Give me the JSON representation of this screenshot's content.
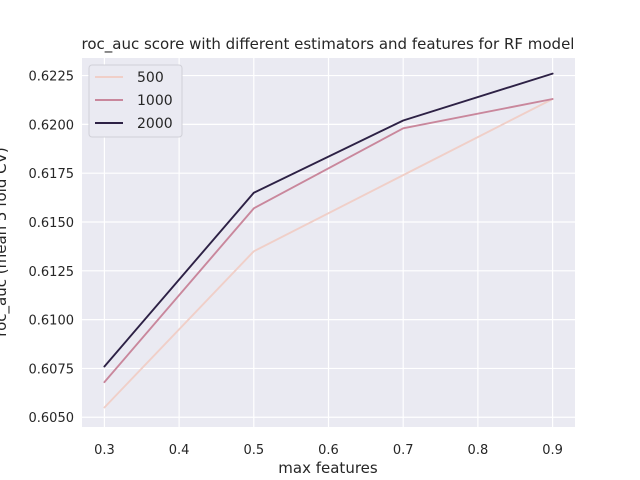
{
  "chart_data": {
    "type": "line",
    "title": "roc_auc score with different estimators and features for RF model",
    "xlabel": "max features",
    "ylabel": "roc_auc (mean 5 fold CV)",
    "x": [
      0.3,
      0.5,
      0.7,
      0.9
    ],
    "xlim": [
      0.27,
      0.93
    ],
    "ylim": [
      0.6045,
      0.6234
    ],
    "xticks": [
      "0.3",
      "0.4",
      "0.5",
      "0.6",
      "0.7",
      "0.8",
      "0.9"
    ],
    "yticks": [
      "0.6050",
      "0.6075",
      "0.6100",
      "0.6125",
      "0.6150",
      "0.6175",
      "0.6200",
      "0.6225"
    ],
    "grid": true,
    "legend_position": "top-left",
    "series": [
      {
        "name": "500",
        "color": "#f0cfc8",
        "values": [
          0.6055,
          0.6135,
          0.6174,
          0.6213
        ]
      },
      {
        "name": "1000",
        "color": "#c9879c",
        "values": [
          0.6068,
          0.6157,
          0.6198,
          0.6213
        ]
      },
      {
        "name": "2000",
        "color": "#2d2145",
        "values": [
          0.6076,
          0.6165,
          0.6202,
          0.6226
        ]
      }
    ],
    "colors": {
      "plot_background": "#eaeaf2",
      "grid": "#ffffff",
      "text": "#262626"
    }
  }
}
